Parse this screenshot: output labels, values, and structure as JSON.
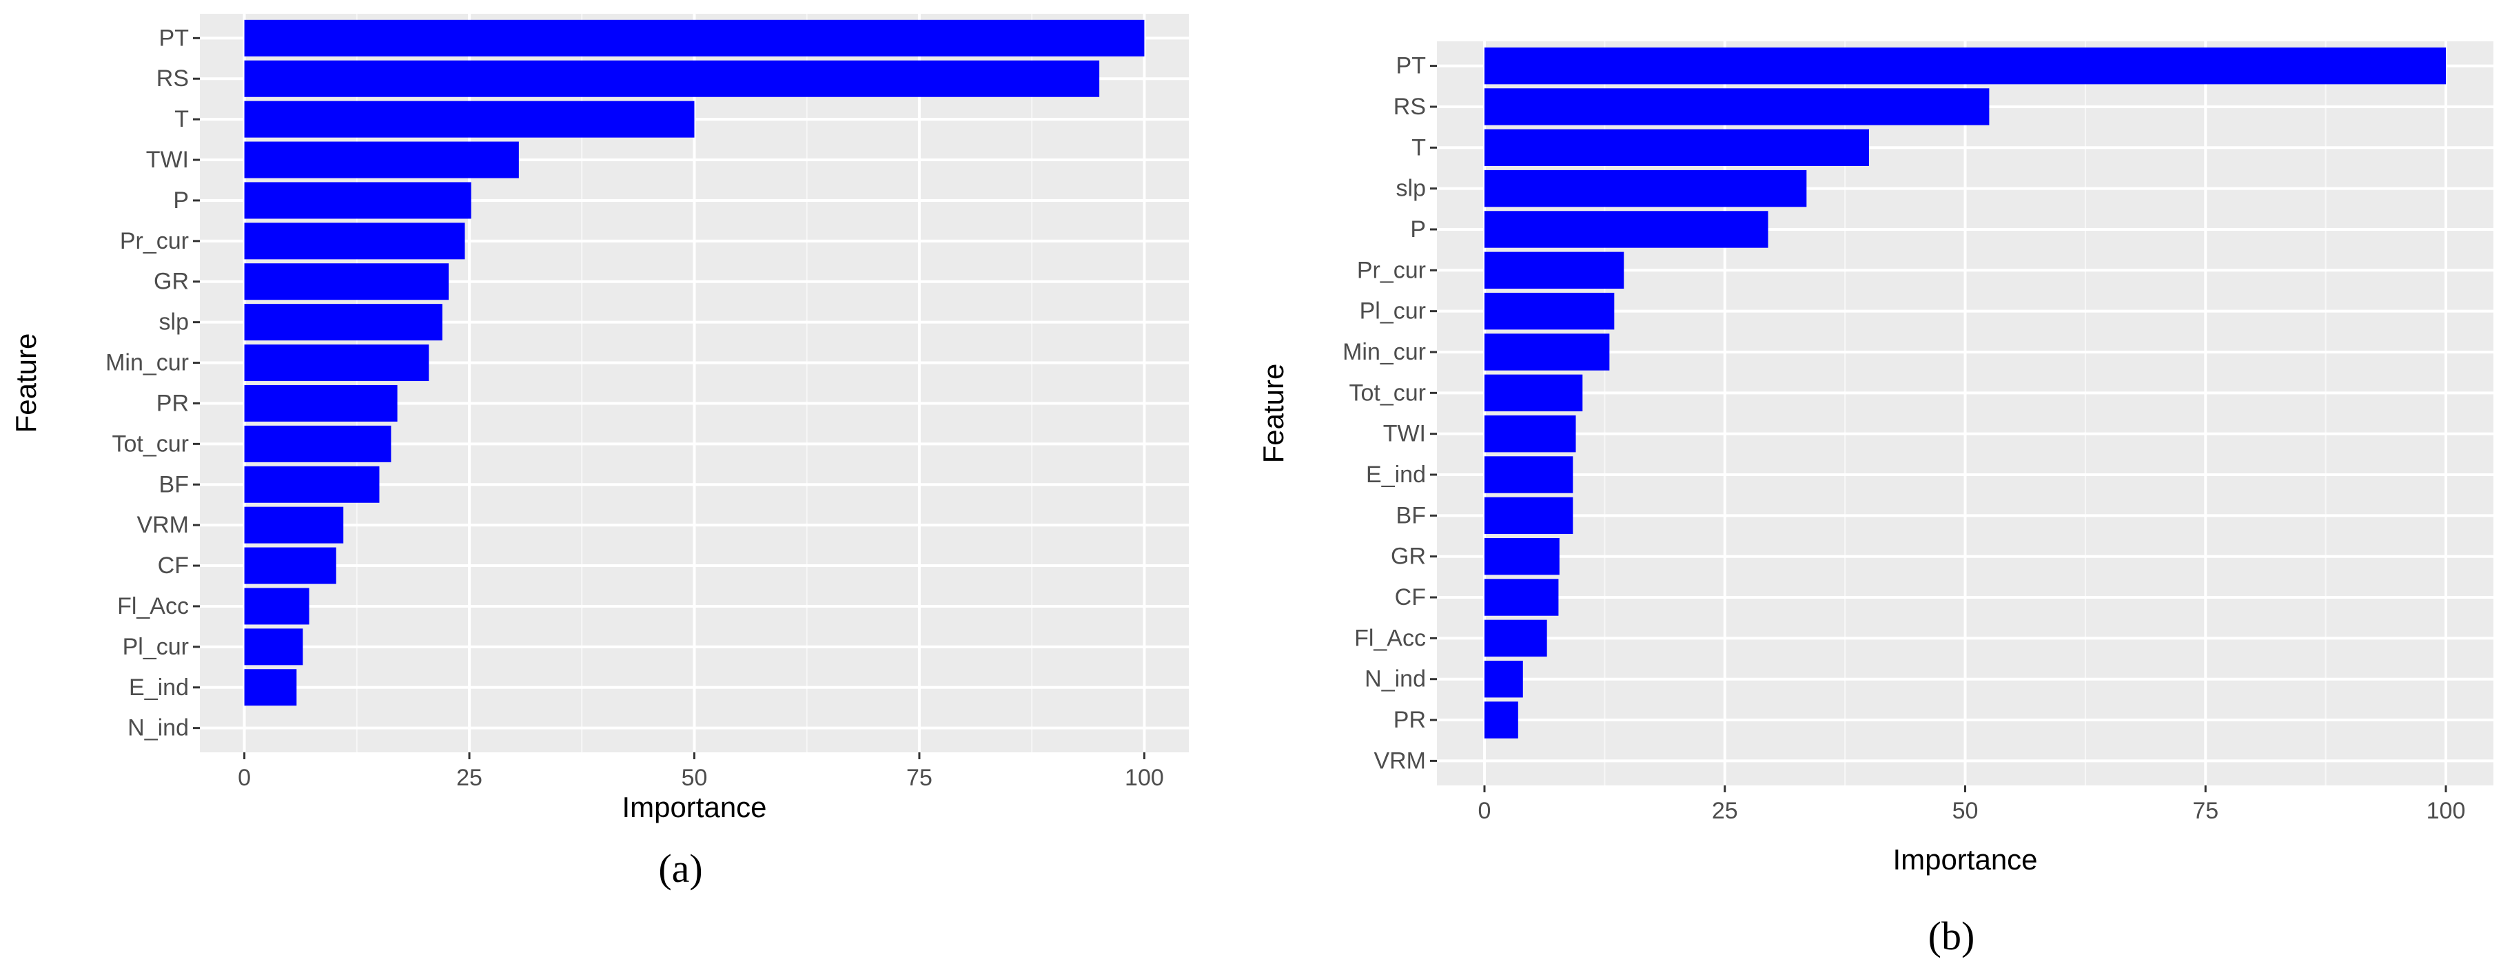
{
  "colors": {
    "bar": "#0000ff",
    "panel_background": "#ebebeb",
    "gridline": "#ffffff",
    "tick_text": "#4d4d4d",
    "axis_title": "#000000"
  },
  "chart_data": [
    {
      "type": "bar",
      "orientation": "horizontal",
      "caption": "(a)",
      "xlabel": "Importance",
      "ylabel": "Feature",
      "xlim": [
        0,
        100
      ],
      "xticks": [
        "0",
        "25",
        "50",
        "75",
        "100"
      ],
      "grid": true,
      "legend": "none",
      "categories": [
        "PT",
        "RS",
        "T",
        "TWI",
        "P",
        "Pr_cur",
        "GR",
        "slp",
        "Min_cur",
        "PR",
        "Tot_cur",
        "BF",
        "VRM",
        "CF",
        "Fl_Acc",
        "Pl_cur",
        "E_ind",
        "N_ind"
      ],
      "values": [
        100,
        95,
        50,
        30.5,
        25.2,
        24.5,
        22.7,
        22,
        20.5,
        17,
        16.3,
        15,
        11,
        10.2,
        7.2,
        6.5,
        5.8,
        0
      ]
    },
    {
      "type": "bar",
      "orientation": "horizontal",
      "caption": "(b)",
      "xlabel": "Importance",
      "ylabel": "Feature",
      "xlim": [
        0,
        100
      ],
      "xticks": [
        "0",
        "25",
        "50",
        "75",
        "100"
      ],
      "grid": true,
      "legend": "none",
      "categories": [
        "PT",
        "RS",
        "T",
        "slp",
        "P",
        "Pr_cur",
        "Pl_cur",
        "Min_cur",
        "Tot_cur",
        "TWI",
        "E_ind",
        "BF",
        "GR",
        "CF",
        "Fl_Acc",
        "N_ind",
        "PR",
        "VRM"
      ],
      "values": [
        100,
        52.5,
        40,
        33.5,
        29.5,
        14.5,
        13.5,
        13,
        10.2,
        9.5,
        9.2,
        9.2,
        7.8,
        7.7,
        6.5,
        4,
        3.5,
        0
      ]
    }
  ]
}
